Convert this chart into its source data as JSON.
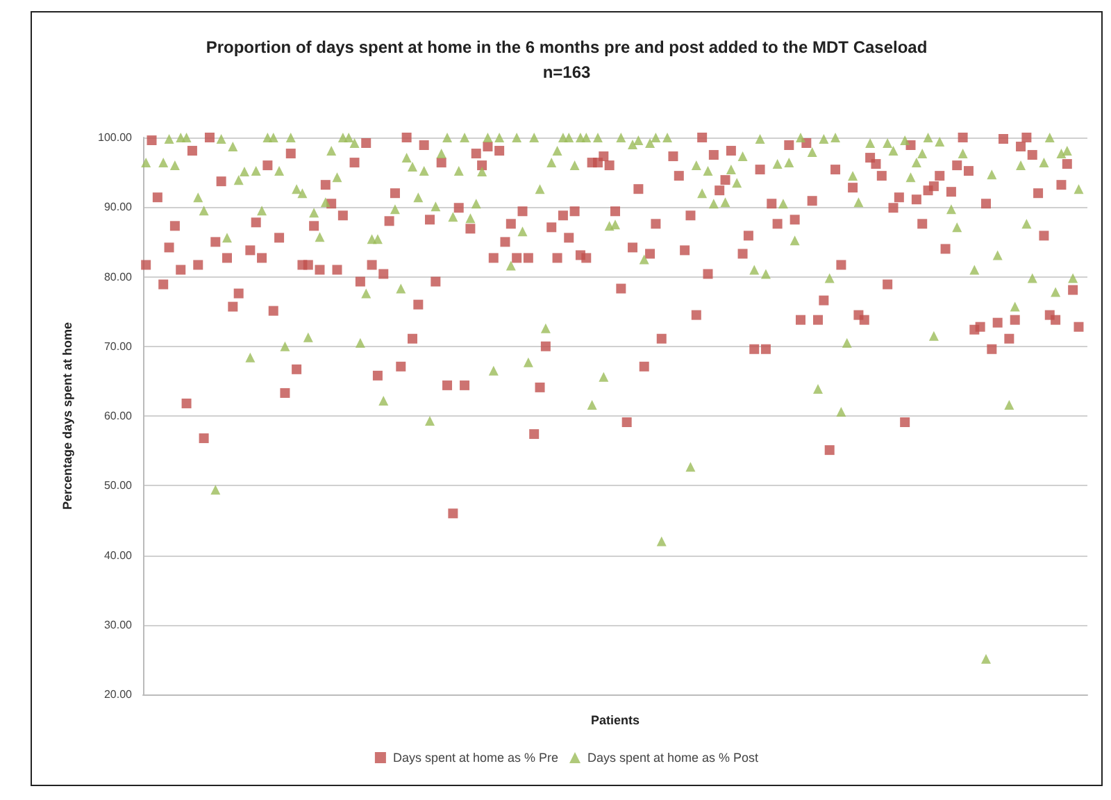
{
  "chart_data": {
    "type": "scatter",
    "title": "Proportion of days spent at home in the 6 months pre and post added to the MDT Caseload",
    "subtitle": "n=163",
    "xlabel": "Patients",
    "ylabel": "Percentage days spent at home",
    "categories": [
      null,
      null,
      null,
      null,
      null,
      null,
      null,
      null,
      null,
      null,
      null,
      null,
      null,
      null,
      null,
      null,
      null,
      null,
      null,
      null,
      null,
      null,
      null,
      null,
      null,
      null,
      null,
      null,
      null,
      null,
      null,
      null,
      null,
      null,
      null,
      null,
      null,
      null,
      null,
      null,
      null,
      null,
      null,
      null,
      null,
      null,
      null,
      null,
      null,
      null,
      null,
      null,
      null,
      null,
      null,
      null,
      null,
      null,
      null,
      null,
      null,
      null,
      null,
      null,
      null,
      null,
      null,
      null,
      null,
      null,
      null,
      null,
      null,
      null,
      null,
      null,
      null,
      null,
      null,
      null,
      null,
      null,
      null,
      null,
      null,
      null,
      null,
      null,
      null,
      null,
      null,
      null,
      null,
      null,
      null,
      null,
      null,
      null,
      null,
      null,
      null,
      null,
      null,
      null,
      null,
      null,
      null,
      null,
      null,
      null,
      null,
      null,
      null,
      null,
      null,
      null,
      null,
      null,
      null,
      null,
      null,
      null,
      null,
      null,
      null,
      null,
      null,
      null,
      null,
      null,
      null,
      null,
      null,
      null,
      null,
      null,
      null,
      null,
      null,
      null,
      null,
      null,
      null,
      null,
      null,
      null,
      null,
      null,
      null,
      null,
      null,
      null,
      null,
      null,
      null,
      null,
      null,
      null,
      null,
      null,
      null,
      null,
      null
    ],
    "series": [
      {
        "name": "Days spent at home as % Pre",
        "color": "#c0504d",
        "marker": "square",
        "values": [
          81.7,
          99.6,
          91.4,
          78.9,
          84.2,
          87.3,
          81.0,
          61.8,
          98.1,
          81.7,
          56.8,
          100,
          85.0,
          93.7,
          82.7,
          75.7,
          77.6,
          null,
          83.8,
          87.8,
          82.7,
          96.0,
          75.1,
          85.6,
          63.3,
          97.7,
          66.7,
          81.7,
          81.7,
          87.3,
          81.0,
          93.2,
          90.5,
          81.0,
          88.8,
          null,
          96.4,
          79.3,
          99.2,
          81.7,
          65.8,
          80.4,
          88.0,
          92.0,
          67.1,
          100,
          71.1,
          76.0,
          98.9,
          88.2,
          79.3,
          96.4,
          64.4,
          46.0,
          89.9,
          64.4,
          86.9,
          97.7,
          96.0,
          98.7,
          82.7,
          98.1,
          85.0,
          87.6,
          82.7,
          89.4,
          82.7,
          57.4,
          64.1,
          70.0,
          87.1,
          82.7,
          88.8,
          85.6,
          89.4,
          83.1,
          82.7,
          96.4,
          96.4,
          97.3,
          96.0,
          89.4,
          78.3,
          59.1,
          84.2,
          92.6,
          67.1,
          83.3,
          87.6,
          71.1,
          null,
          97.3,
          94.5,
          83.8,
          88.8,
          74.5,
          100,
          80.4,
          97.5,
          92.4,
          93.9,
          98.1,
          null,
          83.3,
          85.9,
          69.6,
          95.4,
          69.6,
          90.5,
          87.6,
          null,
          98.9,
          88.2,
          73.8,
          99.2,
          90.9,
          73.8,
          76.6,
          55.1,
          95.4,
          81.7,
          null,
          92.8,
          74.5,
          73.8,
          97.1,
          96.2,
          94.5,
          78.9,
          89.9,
          91.4,
          59.1,
          98.9,
          91.1,
          87.6,
          92.4,
          93.0,
          94.5,
          84.0,
          92.2,
          96.0,
          100,
          95.2,
          72.4,
          72.8,
          90.5,
          69.6,
          73.4,
          99.8,
          71.1,
          73.8,
          98.7,
          100,
          97.5,
          92.0,
          85.9,
          74.5,
          73.8,
          93.2,
          96.2,
          78.1,
          72.8,
          null
        ]
      },
      {
        "name": "Days spent at home as % Post",
        "color": "#9bbb59",
        "marker": "triangle",
        "values": [
          96.4,
          null,
          null,
          96.4,
          99.8,
          96.0,
          100,
          100,
          null,
          91.4,
          89.5,
          null,
          49.4,
          99.8,
          85.6,
          98.7,
          93.9,
          95.1,
          68.4,
          95.2,
          89.5,
          100,
          100,
          95.2,
          70.0,
          100,
          92.6,
          92.0,
          71.3,
          89.2,
          85.7,
          90.7,
          98.1,
          94.3,
          100,
          100,
          99.2,
          70.5,
          77.6,
          85.4,
          85.4,
          62.2,
          null,
          89.7,
          78.3,
          97.1,
          95.8,
          91.4,
          95.2,
          59.3,
          90.1,
          97.7,
          100,
          88.6,
          95.2,
          100,
          88.4,
          90.5,
          95.1,
          100,
          66.5,
          100,
          null,
          81.6,
          100,
          86.5,
          67.7,
          100,
          92.6,
          72.6,
          96.4,
          98.1,
          100,
          100,
          96.0,
          100,
          100,
          61.6,
          100,
          65.6,
          87.3,
          87.5,
          100,
          null,
          99.0,
          99.6,
          82.5,
          99.2,
          100,
          42.0,
          100,
          null,
          null,
          null,
          52.7,
          96.0,
          92.0,
          95.2,
          90.5,
          null,
          90.7,
          95.4,
          93.5,
          97.3,
          null,
          81.0,
          99.8,
          80.4,
          null,
          96.2,
          90.5,
          96.4,
          85.2,
          100,
          null,
          97.9,
          63.9,
          99.8,
          79.8,
          100,
          60.6,
          70.5,
          94.5,
          90.7,
          null,
          99.2,
          null,
          null,
          99.2,
          98.1,
          null,
          99.6,
          94.3,
          96.4,
          97.7,
          100,
          71.5,
          99.4,
          null,
          89.7,
          87.1,
          97.7,
          null,
          81.0,
          null,
          25.1,
          94.7,
          83.1,
          null,
          61.6,
          75.7,
          96.0,
          87.6,
          79.8,
          null,
          96.4,
          100,
          77.8,
          97.7,
          98.1,
          79.8,
          92.6,
          null
        ]
      }
    ],
    "ylim": [
      20,
      100
    ],
    "yticks": [
      {
        "value": 20,
        "label": "20.00"
      },
      {
        "value": 30,
        "label": "30.00"
      },
      {
        "value": 40,
        "label": "40.00"
      },
      {
        "value": 50,
        "label": "50.00"
      },
      {
        "value": 60,
        "label": "60.00"
      },
      {
        "value": 70,
        "label": "70.00"
      },
      {
        "value": 80,
        "label": "80.00"
      },
      {
        "value": 90,
        "label": "90.00"
      },
      {
        "value": 100,
        "label": "100.00"
      }
    ],
    "grid": "y",
    "legend": "bottom",
    "tick_labels": "y"
  }
}
